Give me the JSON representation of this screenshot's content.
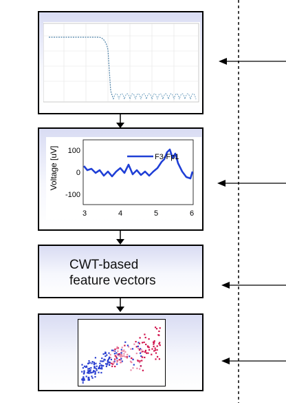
{
  "stage1": {
    "name": "filter-response-plot"
  },
  "stage2": {
    "ylabel": "Voltage [uV]",
    "yticks": [
      "100",
      "0",
      "-100"
    ],
    "xticks": [
      "3",
      "4",
      "5",
      "6"
    ],
    "legend": "F3-Fp1",
    "line_color": "#1f3fd6"
  },
  "stage3": {
    "label": "CWT-based\nfeature vectors"
  },
  "stage4": {
    "name": "feature-scatter-plot",
    "colors": [
      "#2a3fd0",
      "#d0104a",
      "#e98aa8"
    ]
  },
  "colors": {
    "panel_top": "#d9dcf3",
    "panel_bottom": "#ffffff",
    "signal": "#1f3fd6"
  }
}
